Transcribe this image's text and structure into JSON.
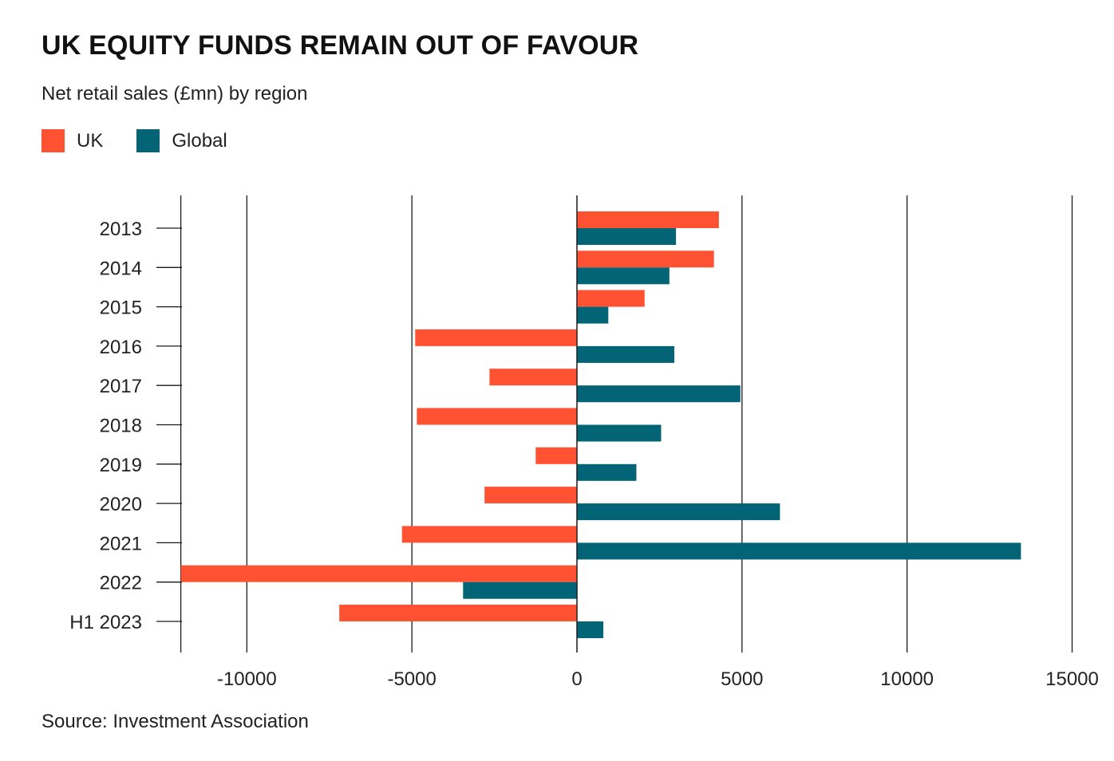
{
  "header": {
    "title": "UK EQUITY FUNDS REMAIN OUT OF FAVOUR",
    "subtitle": "Net retail sales (£mn) by region"
  },
  "footer": {
    "source": "Source: Investment Association"
  },
  "colors": {
    "uk": "#ff5232",
    "global": "#026474",
    "grid": "#1a1a1a"
  },
  "chart_data": {
    "type": "bar",
    "orientation": "horizontal",
    "title": "UK EQUITY FUNDS REMAIN OUT OF FAVOUR",
    "subtitle": "Net retail sales (£mn) by region",
    "xlabel": "",
    "ylabel": "",
    "categories": [
      "2013",
      "2014",
      "2015",
      "2016",
      "2017",
      "2018",
      "2019",
      "2020",
      "2021",
      "2022",
      "H1 2023"
    ],
    "series": [
      {
        "name": "UK",
        "color": "#ff5232",
        "values": [
          4300,
          4150,
          2050,
          -4900,
          -2650,
          -4850,
          -1250,
          -2800,
          -5300,
          -12000,
          -7200
        ]
      },
      {
        "name": "Global",
        "color": "#026474",
        "values": [
          3000,
          2800,
          950,
          2950,
          4950,
          2550,
          1800,
          6150,
          13450,
          -3450,
          800
        ]
      }
    ],
    "xlim": [
      -12000,
      15000
    ],
    "xticks": [
      -10000,
      -5000,
      0,
      5000,
      10000,
      15000
    ],
    "xtick_labels": [
      "-10000",
      "-5000",
      "0",
      "5000",
      "10000",
      "15000"
    ],
    "grid": "vertical",
    "legend": "top-left"
  }
}
